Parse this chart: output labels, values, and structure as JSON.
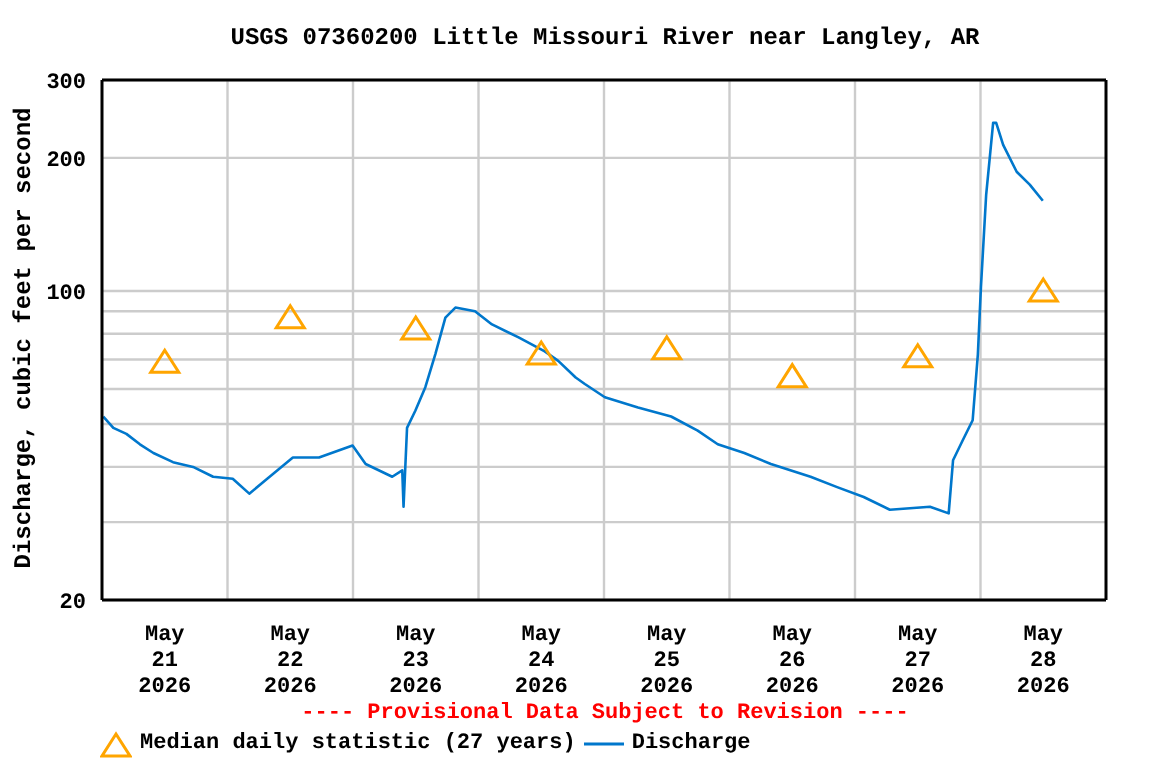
{
  "chart_data": {
    "type": "line",
    "title": "USGS 07360200 Little Missouri River near Langley, AR",
    "ylabel": "Discharge, cubic feet per second",
    "annotations": [
      "---- Provisional Data Subject to Revision ----"
    ],
    "log": "y",
    "grid": true,
    "legend": "bottom",
    "xlim": [
      "2026-05-21",
      "2026-05-29"
    ],
    "xticks": [
      {
        "value": "2026-05-21T12:00",
        "label": "May\n21\n2026"
      },
      {
        "value": "2026-05-22T12:00",
        "label": "May\n22\n2026"
      },
      {
        "value": "2026-05-23T12:00",
        "label": "May\n23\n2026"
      },
      {
        "value": "2026-05-24T12:00",
        "label": "May\n24\n2026"
      },
      {
        "value": "2026-05-25T12:00",
        "label": "May\n25\n2026"
      },
      {
        "value": "2026-05-26T12:00",
        "label": "May\n26\n2026"
      },
      {
        "value": "2026-05-27T12:00",
        "label": "May\n27\n2026"
      },
      {
        "value": "2026-05-28T12:00",
        "label": "May\n28\n2026"
      },
      {
        "value": "2026-05-22",
        "label": null
      },
      {
        "value": "2026-05-23",
        "label": null
      },
      {
        "value": "2026-05-24",
        "label": null
      },
      {
        "value": "2026-05-25",
        "label": null
      },
      {
        "value": "2026-05-26",
        "label": null
      },
      {
        "value": "2026-05-27",
        "label": null
      },
      {
        "value": "2026-05-28",
        "label": null
      }
    ],
    "ylim": [
      20,
      300
    ],
    "yticks": [
      20,
      {
        "value": 30,
        "label": null
      },
      {
        "value": 40,
        "label": null
      },
      {
        "value": 50,
        "label": null
      },
      {
        "value": 60,
        "label": null
      },
      {
        "value": 70,
        "label": null
      },
      {
        "value": 80,
        "label": null
      },
      {
        "value": 90,
        "label": null
      },
      100,
      200,
      300
    ],
    "series": [
      {
        "name": "Median daily statistic (27 years)",
        "type": "scatter",
        "marker": "triangle",
        "color": "#ffa500",
        "x": [
          "2026-05-21T12:00",
          "2026-05-22T12:00",
          "2026-05-23T12:00",
          "2026-05-24T12:00",
          "2026-05-25T12:00",
          "2026-05-26T12:00",
          "2026-05-27T12:00",
          "2026-05-28T12:00"
        ],
        "values": [
          69,
          87,
          82,
          72,
          74,
          64,
          71,
          100
        ]
      },
      {
        "name": "Discharge",
        "marker": "none",
        "color": "#0077cc",
        "x": [
          "2026-05-21T00:15",
          "2026-05-21T02:10",
          "2026-05-21T04:40",
          "2026-05-21T07:15",
          "2026-05-21T09:50",
          "2026-05-21T13:35",
          "2026-05-21T17:25",
          "2026-05-21T21:15",
          "2026-05-22T01:00",
          "2026-05-22T04:10",
          "2026-05-22T07:15",
          "2026-05-22T12:30",
          "2026-05-22T17:30",
          "2026-05-22T23:55",
          "2026-05-23T02:25",
          "2026-05-23T07:30",
          "2026-05-23T09:25",
          "2026-05-23T09:40",
          "2026-05-23T10:20",
          "2026-05-23T11:55",
          "2026-05-23T13:50",
          "2026-05-23T15:45",
          "2026-05-23T17:40",
          "2026-05-23T19:35",
          "2026-05-23T23:20",
          "2026-05-24T02:35",
          "2026-05-24T07:40",
          "2026-05-24T12:40",
          "2026-05-24T15:15",
          "2026-05-24T18:35",
          "2026-05-24T20:20",
          "2026-05-25T00:10",
          "2026-05-25T06:30",
          "2026-05-25T12:50",
          "2026-05-25T17:55",
          "2026-05-25T21:45",
          "2026-05-26T02:50",
          "2026-05-26T07:55",
          "2026-05-26T15:30",
          "2026-05-26T20:35",
          "2026-05-27T01:40",
          "2026-05-27T06:40",
          "2026-05-27T14:20",
          "2026-05-27T17:55",
          "2026-05-27T18:45",
          "2026-05-27T20:35",
          "2026-05-27T22:30",
          "2026-05-27T23:30",
          "2026-05-28T00:05",
          "2026-05-28T01:05",
          "2026-05-28T02:25",
          "2026-05-28T03:00",
          "2026-05-28T04:20",
          "2026-05-28T06:55",
          "2026-05-28T09:25",
          "2026-05-28T11:55"
        ],
        "values": [
          52,
          49,
          47.5,
          45,
          43,
          41,
          40,
          38,
          37.6,
          34.8,
          37.3,
          42,
          42,
          44.7,
          40.6,
          38,
          39.3,
          32.5,
          49,
          53.6,
          60.6,
          72,
          87,
          91.7,
          90,
          84,
          78.5,
          73,
          69.5,
          63.7,
          61.6,
          57.5,
          54.5,
          52,
          48.3,
          45,
          43,
          40.6,
          38,
          36,
          34.2,
          32,
          32.5,
          31.4,
          41.4,
          45.9,
          51,
          72,
          102,
          165,
          240,
          240,
          214,
          186,
          174,
          160
        ]
      }
    ]
  }
}
